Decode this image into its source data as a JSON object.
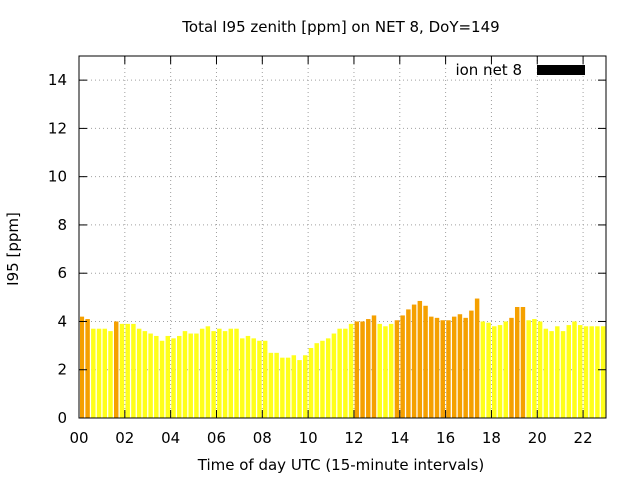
{
  "chart_data": {
    "type": "bar",
    "title": "Total I95 zenith [ppm] on NET 8, DoY=149",
    "xlabel": "Time of day UTC (15-minute intervals)",
    "ylabel": "I95 [ppm]",
    "xlim": [
      0,
      23
    ],
    "ylim": [
      0,
      15
    ],
    "x_ticks": [
      "00",
      "02",
      "04",
      "06",
      "08",
      "10",
      "12",
      "14",
      "16",
      "18",
      "20",
      "22"
    ],
    "y_ticks": [
      "0",
      "2",
      "4",
      "6",
      "8",
      "10",
      "12",
      "14"
    ],
    "grid": true,
    "legend": {
      "placement": "top-right",
      "entries": [
        {
          "name": "ion net 8",
          "color": "#000000"
        }
      ]
    },
    "bar_interval_hours": 0.25,
    "colors": {
      "high": "#f5a000",
      "low": "#ffff1a"
    },
    "values": [
      4.2,
      4.1,
      3.7,
      3.7,
      3.7,
      3.6,
      4.0,
      3.9,
      3.9,
      3.9,
      3.7,
      3.6,
      3.5,
      3.4,
      3.2,
      3.4,
      3.3,
      3.4,
      3.6,
      3.5,
      3.5,
      3.7,
      3.8,
      3.6,
      3.7,
      3.6,
      3.7,
      3.7,
      3.3,
      3.4,
      3.3,
      3.2,
      3.2,
      2.7,
      2.7,
      2.5,
      2.5,
      2.6,
      2.4,
      2.6,
      2.9,
      3.1,
      3.2,
      3.3,
      3.5,
      3.7,
      3.7,
      3.9,
      4.0,
      4.0,
      4.1,
      4.25,
      3.9,
      3.8,
      3.9,
      4.05,
      4.25,
      4.5,
      4.7,
      4.85,
      4.65,
      4.2,
      4.15,
      4.05,
      4.05,
      4.2,
      4.3,
      4.15,
      4.45,
      4.95,
      4.0,
      3.95,
      3.8,
      3.85,
      4.0,
      4.15,
      4.6,
      4.6,
      4.05,
      4.1,
      4.0,
      3.7,
      3.6,
      3.8,
      3.6,
      3.85,
      4.0,
      3.85,
      3.8,
      3.8,
      3.8,
      3.8
    ],
    "bar_levels": [
      "high",
      "high",
      "low",
      "low",
      "low",
      "low",
      "high",
      "low",
      "low",
      "low",
      "low",
      "low",
      "low",
      "low",
      "low",
      "low",
      "low",
      "low",
      "low",
      "low",
      "low",
      "low",
      "low",
      "low",
      "low",
      "low",
      "low",
      "low",
      "low",
      "low",
      "low",
      "low",
      "low",
      "low",
      "low",
      "low",
      "low",
      "low",
      "low",
      "low",
      "low",
      "low",
      "low",
      "low",
      "low",
      "low",
      "low",
      "low",
      "high",
      "high",
      "high",
      "high",
      "low",
      "low",
      "low",
      "high",
      "high",
      "high",
      "high",
      "high",
      "high",
      "high",
      "high",
      "high",
      "high",
      "high",
      "high",
      "high",
      "high",
      "high",
      "low",
      "low",
      "low",
      "low",
      "low",
      "high",
      "high",
      "high",
      "low",
      "low",
      "low",
      "low",
      "low",
      "low",
      "low",
      "low",
      "low",
      "low",
      "low",
      "low",
      "low",
      "low"
    ]
  }
}
